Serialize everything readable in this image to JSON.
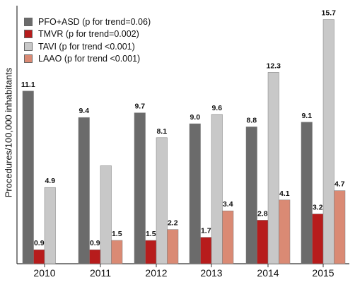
{
  "chart_data": {
    "type": "bar",
    "title": "",
    "xlabel": "",
    "ylabel": "Procedures/100,000 inhabitants",
    "categories": [
      "2010",
      "2011",
      "2012",
      "2013",
      "2014",
      "2015"
    ],
    "ylim": [
      0,
      16.5
    ],
    "grid": false,
    "legend_position": "top-left",
    "series": [
      {
        "name": "PFO+ASD",
        "trend": "(p for trend=0.06)",
        "color": "#6b6b6b",
        "values": [
          11.1,
          9.4,
          9.7,
          9.0,
          8.8,
          9.1
        ],
        "labels": [
          "11.1",
          "9.4",
          "9.7",
          "9.0",
          "8.8",
          "9.1"
        ]
      },
      {
        "name": "TMVR",
        "trend": "(p for trend=0.002)",
        "color": "#b71c1c",
        "values": [
          0.9,
          0.9,
          1.5,
          1.7,
          2.8,
          3.2
        ],
        "labels": [
          "0.9",
          "0.9",
          "1.5",
          "1.7",
          "2.8",
          "3.2"
        ]
      },
      {
        "name": "TAVI",
        "trend": "(p for trend <0.001)",
        "color": "#c8c8c8",
        "values": [
          4.9,
          6.3,
          8.1,
          9.6,
          12.3,
          15.7
        ],
        "labels": [
          "4.9",
          "",
          "8.1",
          "9.6",
          "12.3",
          "15.7"
        ]
      },
      {
        "name": "LAAO",
        "trend": "(p for trend <0.001)",
        "color": "#da8a74",
        "values": [
          0,
          1.5,
          2.2,
          3.4,
          4.1,
          4.7
        ],
        "labels": [
          "",
          "1.5",
          "2.2",
          "3.4",
          "4.1",
          "4.7"
        ]
      }
    ]
  }
}
